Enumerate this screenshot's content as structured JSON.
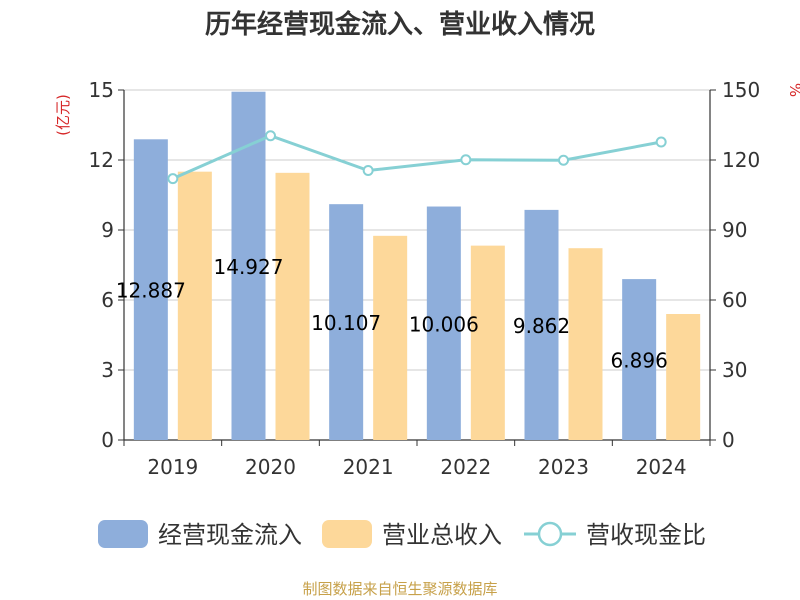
{
  "chart_data": {
    "type": "bar",
    "title": "历年经营现金流入、营业收入情况",
    "categories": [
      "2019",
      "2020",
      "2021",
      "2022",
      "2023",
      "2024"
    ],
    "series": [
      {
        "name": "经营现金流入",
        "kind": "bar",
        "axis": "left",
        "color": "#8eaedb",
        "values": [
          12.887,
          14.927,
          10.107,
          10.006,
          9.862,
          6.896
        ],
        "labels": [
          "12.887",
          "14.927",
          "10.107",
          "10.006",
          "9.862",
          "6.896"
        ]
      },
      {
        "name": "营业总收入",
        "kind": "bar",
        "axis": "left",
        "color": "#fdd89a",
        "values": [
          11.5,
          11.45,
          8.75,
          8.33,
          8.22,
          5.4
        ]
      },
      {
        "name": "营收现金比",
        "kind": "line",
        "axis": "right",
        "color": "#86d0d4",
        "values": [
          112,
          130.4,
          115.5,
          120.1,
          119.9,
          127.7
        ]
      }
    ],
    "left_axis": {
      "unit": "(亿元)",
      "ylim": [
        0,
        15
      ],
      "ticks": [
        "0",
        "3",
        "6",
        "9",
        "12",
        "15"
      ]
    },
    "right_axis": {
      "unit": "%",
      "ylim": [
        0,
        150
      ],
      "ticks": [
        "0",
        "30",
        "60",
        "90",
        "120",
        "150"
      ]
    },
    "grid": true,
    "legend_position": "bottom",
    "source": "制图数据来自恒生聚源数据库"
  }
}
